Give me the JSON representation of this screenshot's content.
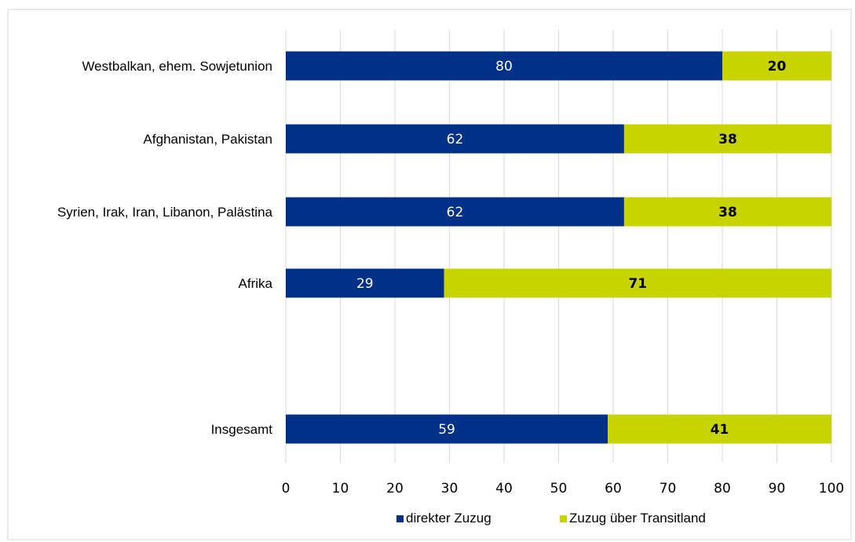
{
  "chart_data": {
    "type": "bar",
    "orientation": "horizontal",
    "stacked": true,
    "categories": [
      "Westbalkan, ehem. Sowjetunion",
      "Afghanistan, Pakistan",
      "Syrien, Irak, Iran, Libanon, Palästina",
      "Afrika",
      "Insgesamt"
    ],
    "series": [
      {
        "name": "direkter Zuzug",
        "values": [
          80,
          62,
          62,
          29,
          59
        ],
        "color": "#003087"
      },
      {
        "name": "Zuzug über Transitland",
        "values": [
          20,
          38,
          38,
          71,
          41
        ],
        "color": "#c8d400"
      }
    ],
    "xlim": [
      0,
      100
    ],
    "xticks": [
      "0",
      "10",
      "20",
      "30",
      "40",
      "50",
      "60",
      "70",
      "80",
      "90",
      "100"
    ],
    "grid": true,
    "legend_position": "bottom"
  }
}
